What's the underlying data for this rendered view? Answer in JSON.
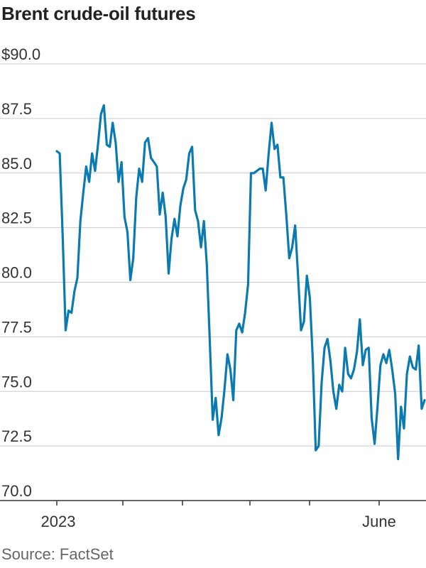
{
  "chart_data": {
    "type": "line",
    "title": "Brent crude-oil futures",
    "source": "Source: FactSet",
    "xlabel": "",
    "ylabel": "",
    "ylim": [
      70,
      90
    ],
    "y_ticks": [
      "$90.0",
      "87.5",
      "85.0",
      "82.5",
      "80.0",
      "77.5",
      "75.0",
      "72.5",
      "70.0"
    ],
    "y_tick_values": [
      90,
      87.5,
      85,
      82.5,
      80,
      77.5,
      75,
      72.5,
      70
    ],
    "x_tick_labels": [
      "2023",
      "June"
    ],
    "grid": true,
    "color": "#0a7ab0",
    "series": [
      {
        "values": [
          86.0,
          85.9,
          82.1,
          77.8,
          78.7,
          78.6,
          79.6,
          80.2,
          82.8,
          84.1,
          85.3,
          84.6,
          85.9,
          85.1,
          86.3,
          87.7,
          88.1,
          86.3,
          86.2,
          87.3,
          86.4,
          84.6,
          85.5,
          83.0,
          82.3,
          80.1,
          81.1,
          83.9,
          85.2,
          84.6,
          86.4,
          86.6,
          85.7,
          85.5,
          85.3,
          83.1,
          84.1,
          83.0,
          80.4,
          82.0,
          82.9,
          82.1,
          83.5,
          84.3,
          84.7,
          85.9,
          86.2,
          83.3,
          82.8,
          81.6,
          82.8,
          80.8,
          77.3,
          73.7,
          74.7,
          73.0,
          73.8,
          75.1,
          76.7,
          76.0,
          74.6,
          77.8,
          78.1,
          77.7,
          78.6,
          79.9,
          85.0,
          85.0,
          85.1,
          85.2,
          85.2,
          84.2,
          85.9,
          87.3,
          86.1,
          86.3,
          84.8,
          84.8,
          83.1,
          81.1,
          81.6,
          82.6,
          80.3,
          77.8,
          78.2,
          80.3,
          79.3,
          76.5,
          72.3,
          72.5,
          75.4,
          77.0,
          77.4,
          76.4,
          75.0,
          74.2,
          75.3,
          75.0,
          77.0,
          75.8,
          75.6,
          76.0,
          76.8,
          78.3,
          76.2,
          76.9,
          77.0,
          73.8,
          72.6,
          74.3,
          76.2,
          76.7,
          76.3,
          76.9,
          76.0,
          74.9,
          71.9,
          74.3,
          73.3,
          75.8,
          76.6,
          76.1,
          76.0,
          77.1,
          74.2,
          74.6
        ]
      }
    ]
  }
}
